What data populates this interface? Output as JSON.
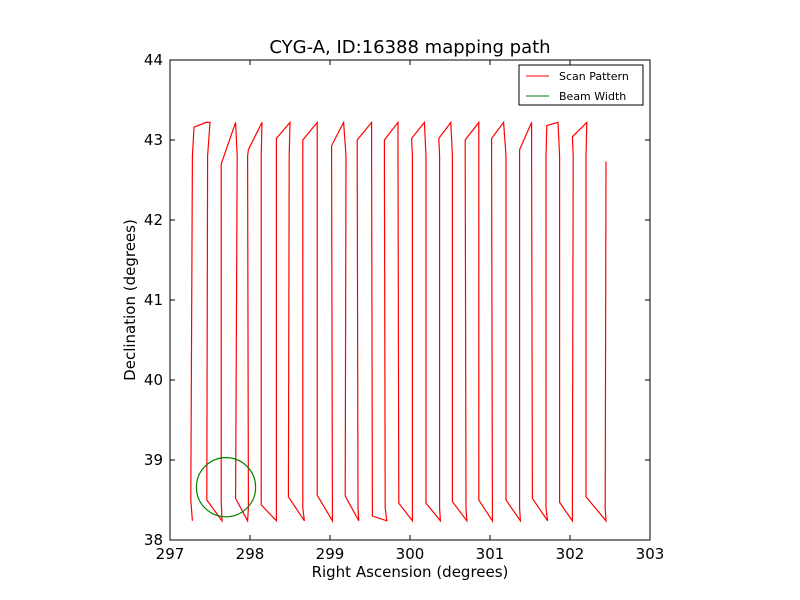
{
  "chart_data": {
    "type": "line",
    "title": "CYG-A, ID:16388 mapping path",
    "xlabel": "Right Ascension (degrees)",
    "ylabel": "Declination (degrees)",
    "xlim": [
      297,
      303
    ],
    "ylim": [
      38,
      44
    ],
    "xticks": [
      "297",
      "298",
      "299",
      "300",
      "301",
      "302",
      "303"
    ],
    "yticks": [
      "38",
      "39",
      "40",
      "41",
      "42",
      "43",
      "44"
    ],
    "grid": false,
    "legend_position": "top-right",
    "series": [
      {
        "name": "Scan Pattern",
        "color": "#ff0000",
        "points": [
          [
            297.28,
            38.24
          ],
          [
            297.26,
            38.5
          ],
          [
            297.28,
            42.8
          ],
          [
            297.3,
            43.16
          ],
          [
            297.45,
            43.22
          ],
          [
            297.5,
            43.22
          ],
          [
            297.47,
            42.8
          ],
          [
            297.46,
            38.5
          ],
          [
            297.65,
            38.24
          ],
          [
            297.64,
            38.5
          ],
          [
            297.64,
            42.7
          ],
          [
            297.82,
            43.22
          ],
          [
            297.84,
            42.8
          ],
          [
            297.82,
            38.52
          ],
          [
            297.97,
            38.24
          ],
          [
            297.98,
            38.4
          ],
          [
            297.97,
            42.8
          ],
          [
            297.98,
            42.88
          ],
          [
            298.15,
            43.22
          ],
          [
            298.14,
            42.8
          ],
          [
            298.14,
            38.44
          ],
          [
            298.33,
            38.24
          ],
          [
            298.33,
            38.4
          ],
          [
            298.33,
            42.8
          ],
          [
            298.33,
            43.02
          ],
          [
            298.5,
            43.22
          ],
          [
            298.49,
            42.8
          ],
          [
            298.48,
            38.54
          ],
          [
            298.68,
            38.24
          ],
          [
            298.66,
            38.4
          ],
          [
            298.66,
            42.8
          ],
          [
            298.66,
            43.0
          ],
          [
            298.84,
            43.22
          ],
          [
            298.84,
            42.8
          ],
          [
            298.84,
            38.56
          ],
          [
            299.03,
            38.24
          ],
          [
            299.03,
            38.4
          ],
          [
            299.02,
            42.8
          ],
          [
            299.02,
            42.93
          ],
          [
            299.17,
            43.22
          ],
          [
            299.2,
            42.8
          ],
          [
            299.19,
            38.55
          ],
          [
            299.36,
            38.24
          ],
          [
            299.35,
            38.4
          ],
          [
            299.34,
            42.8
          ],
          [
            299.34,
            43.0
          ],
          [
            299.52,
            43.22
          ],
          [
            299.52,
            42.8
          ],
          [
            299.53,
            38.3
          ],
          [
            299.71,
            38.24
          ],
          [
            299.69,
            38.4
          ],
          [
            299.68,
            42.8
          ],
          [
            299.68,
            43.0
          ],
          [
            299.85,
            43.22
          ],
          [
            299.85,
            42.8
          ],
          [
            299.86,
            38.46
          ],
          [
            300.03,
            38.24
          ],
          [
            300.03,
            38.4
          ],
          [
            300.03,
            42.8
          ],
          [
            300.02,
            43.02
          ],
          [
            300.18,
            43.22
          ],
          [
            300.2,
            42.8
          ],
          [
            300.2,
            38.46
          ],
          [
            300.38,
            38.24
          ],
          [
            300.37,
            38.4
          ],
          [
            300.37,
            42.8
          ],
          [
            300.36,
            43.02
          ],
          [
            300.51,
            43.22
          ],
          [
            300.53,
            42.8
          ],
          [
            300.53,
            38.48
          ],
          [
            300.71,
            38.24
          ],
          [
            300.7,
            38.4
          ],
          [
            300.69,
            42.8
          ],
          [
            300.69,
            43.0
          ],
          [
            300.86,
            43.22
          ],
          [
            300.86,
            42.8
          ],
          [
            300.86,
            38.5
          ],
          [
            301.03,
            38.24
          ],
          [
            301.03,
            38.4
          ],
          [
            301.02,
            42.8
          ],
          [
            301.02,
            43.02
          ],
          [
            301.17,
            43.22
          ],
          [
            301.2,
            42.8
          ],
          [
            301.2,
            38.5
          ],
          [
            301.38,
            38.24
          ],
          [
            301.37,
            38.4
          ],
          [
            301.37,
            42.8
          ],
          [
            301.37,
            42.88
          ],
          [
            301.52,
            43.22
          ],
          [
            301.52,
            42.8
          ],
          [
            301.53,
            38.52
          ],
          [
            301.72,
            38.24
          ],
          [
            301.7,
            38.4
          ],
          [
            301.7,
            42.8
          ],
          [
            301.71,
            43.18
          ],
          [
            301.85,
            43.22
          ],
          [
            301.87,
            42.8
          ],
          [
            301.87,
            38.47
          ],
          [
            302.03,
            38.24
          ],
          [
            302.03,
            38.4
          ],
          [
            302.04,
            42.8
          ],
          [
            302.03,
            43.04
          ],
          [
            302.21,
            43.22
          ],
          [
            302.2,
            42.8
          ],
          [
            302.2,
            38.54
          ],
          [
            302.45,
            38.24
          ],
          [
            302.44,
            38.4
          ],
          [
            302.45,
            42.73
          ]
        ]
      },
      {
        "name": "Beam Width",
        "color": "#008000",
        "shape": "circle",
        "center": [
          297.7,
          38.66
        ],
        "radius": 0.37
      }
    ]
  }
}
